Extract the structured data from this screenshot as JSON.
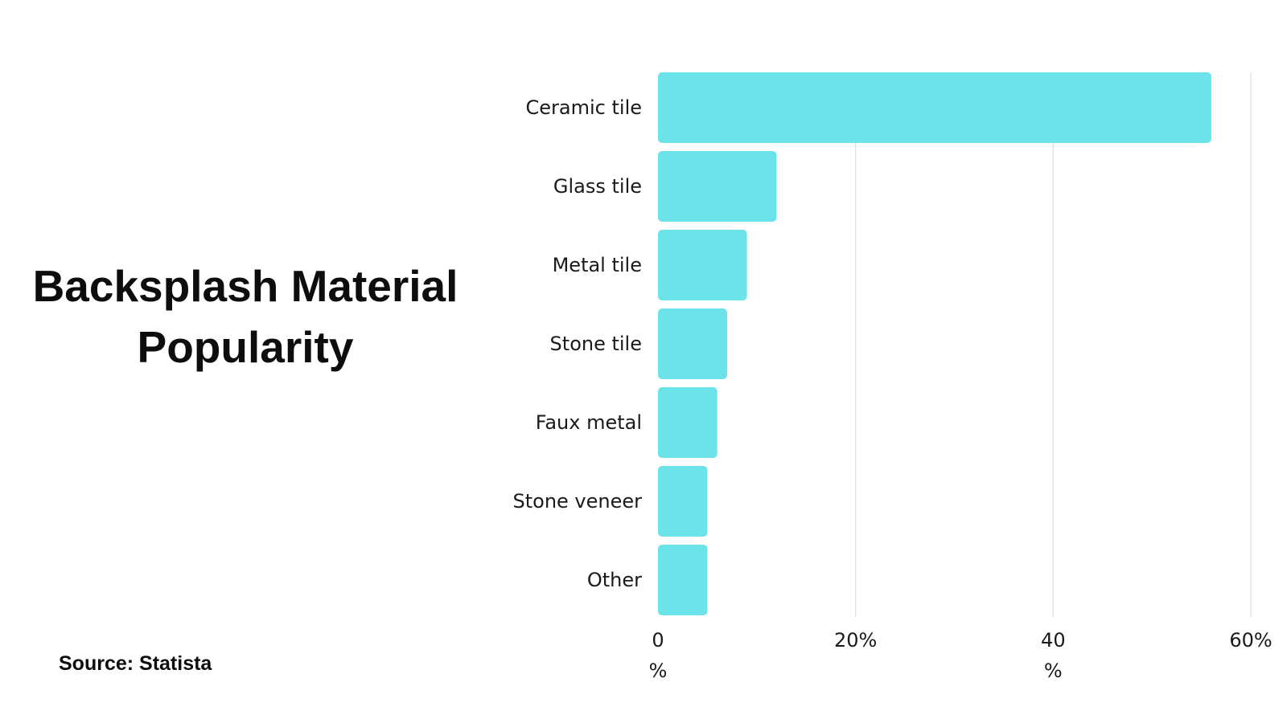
{
  "title": {
    "line1": "Backsplash Material",
    "line2": "Popularity"
  },
  "source": "Source: Statista",
  "colors": {
    "bar": "#6CE3E8",
    "grid": "#dddddd",
    "text": "#1a1a1a"
  },
  "chart_data": {
    "type": "bar",
    "orientation": "horizontal",
    "categories": [
      "Ceramic tile",
      "Glass tile",
      "Metal tile",
      "Stone tile",
      "Faux metal",
      "Stone veneer",
      "Other"
    ],
    "values": [
      56,
      12,
      9,
      7,
      6,
      5,
      5
    ],
    "xlim": [
      0,
      60
    ],
    "xticks": [
      {
        "value": 0,
        "lines": [
          "0",
          "%"
        ]
      },
      {
        "value": 20,
        "lines": [
          "20%"
        ]
      },
      {
        "value": 40,
        "lines": [
          "40",
          "%"
        ]
      },
      {
        "value": 60,
        "lines": [
          "60%"
        ]
      }
    ],
    "grid": true,
    "unit": "%"
  }
}
